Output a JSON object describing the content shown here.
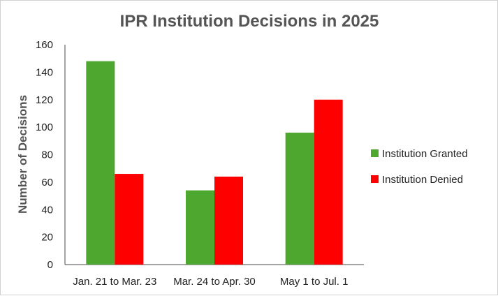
{
  "chart_data": {
    "type": "bar",
    "title": "IPR Institution Decisions in 2025",
    "xlabel": "",
    "ylabel": "Number of Decisions",
    "categories": [
      "Jan. 21 to Mar. 23",
      "Mar. 24 to Apr. 30",
      "May 1 to Jul. 1"
    ],
    "series": [
      {
        "name": "Institution Granted",
        "values": [
          148,
          54,
          96
        ],
        "color": "#4ea72e"
      },
      {
        "name": "Institution Denied",
        "values": [
          66,
          64,
          120
        ],
        "color": "#ff0000"
      }
    ],
    "ylim": [
      0,
      160
    ],
    "yticks": [
      0,
      20,
      40,
      60,
      80,
      100,
      120,
      140,
      160
    ],
    "grid": false,
    "legend_position": "right"
  }
}
